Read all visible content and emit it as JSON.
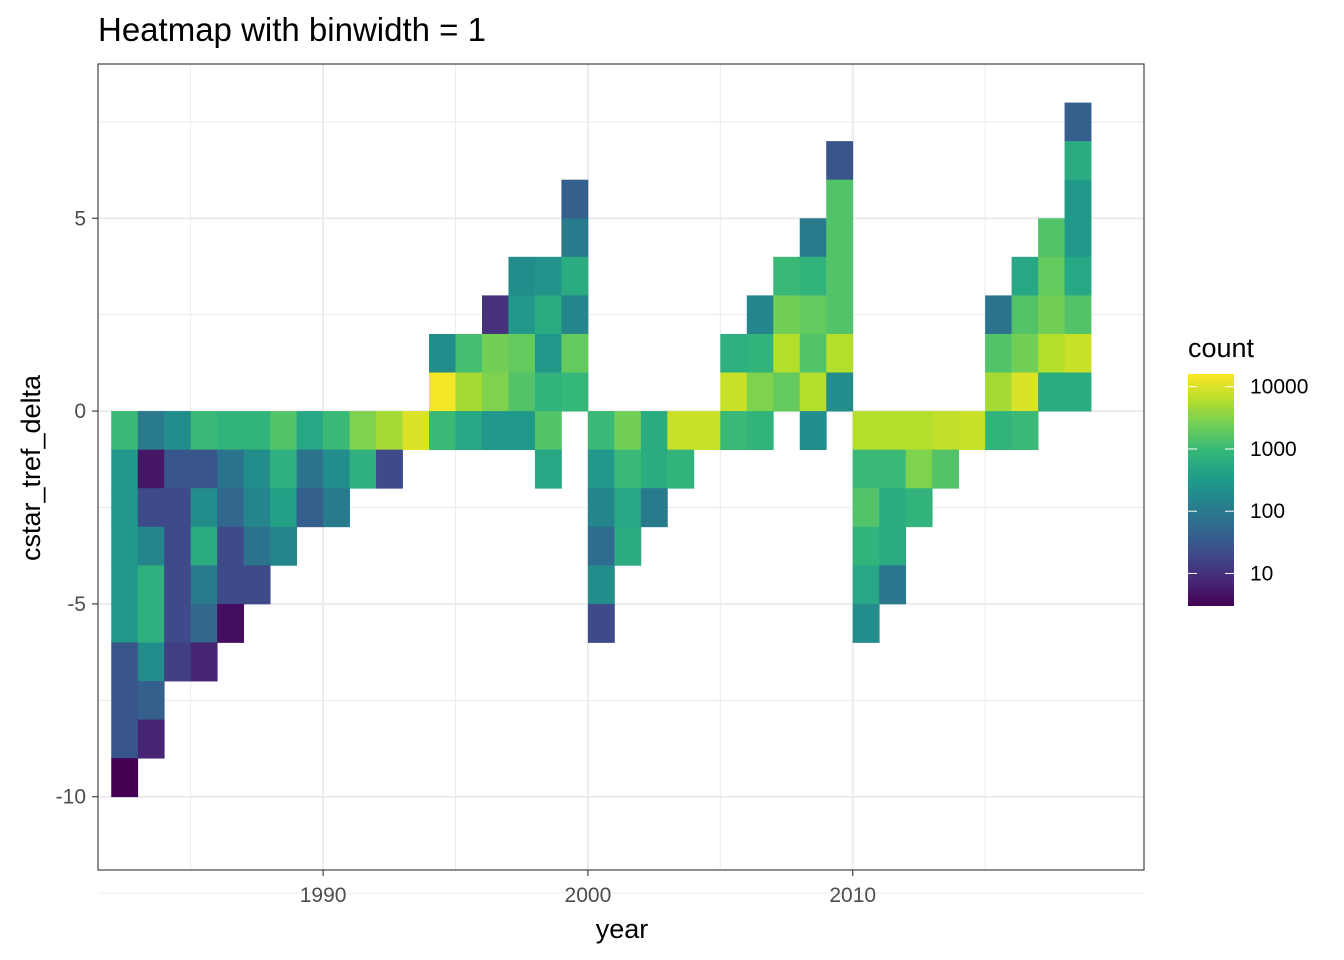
{
  "chart_data": {
    "type": "heatmap",
    "title": "Heatmap with binwidth = 1",
    "xlabel": "year",
    "ylabel": "cstar_tref_delta",
    "xlim": [
      1981.5,
      2021
    ],
    "ylim": [
      -11.9,
      9
    ],
    "x_ticks": [
      1990,
      2000,
      2010
    ],
    "y_ticks": [
      -10,
      -5,
      0,
      5
    ],
    "x_tick_labels": [
      "1990",
      "2000",
      "2010"
    ],
    "y_tick_labels": [
      "-10",
      "-5",
      "0",
      "5"
    ],
    "grid": true,
    "bin_width": 1,
    "legend": {
      "title": "count",
      "position": "right",
      "scale": "log10",
      "breaks": [
        10,
        100,
        1000,
        10000
      ],
      "labels": [
        "10",
        "100",
        "1000",
        "10000"
      ],
      "domain": [
        3,
        16000
      ],
      "colors": [
        "#440154",
        "#482878",
        "#3e4a89",
        "#31688e",
        "#26828e",
        "#1f9e89",
        "#35b779",
        "#6ece58",
        "#b5de2b",
        "#fde725"
      ]
    },
    "columns": [
      {
        "x": 1982.5,
        "y_top": 0,
        "counts": [
          1000,
          300,
          300,
          300,
          300,
          300,
          30,
          30,
          30,
          3
        ]
      },
      {
        "x": 1983.5,
        "y_top": 0,
        "counts": [
          100,
          5,
          20,
          150,
          700,
          700,
          200,
          40,
          7
        ]
      },
      {
        "x": 1984.5,
        "y_top": 0,
        "counts": [
          200,
          30,
          20,
          20,
          20,
          20,
          15
        ]
      },
      {
        "x": 1985.5,
        "y_top": 0,
        "counts": [
          1000,
          30,
          200,
          600,
          100,
          50,
          7
        ]
      },
      {
        "x": 1986.5,
        "y_top": 0,
        "counts": [
          800,
          80,
          50,
          20,
          20,
          4
        ]
      },
      {
        "x": 1987.5,
        "y_top": 0,
        "counts": [
          800,
          200,
          150,
          80,
          20
        ]
      },
      {
        "x": 1988.5,
        "y_top": 0,
        "counts": [
          1500,
          700,
          400,
          150
        ]
      },
      {
        "x": 1989.5,
        "y_top": 0,
        "counts": [
          500,
          80,
          40
        ]
      },
      {
        "x": 1990.5,
        "y_top": 0,
        "counts": [
          1000,
          200,
          100
        ]
      },
      {
        "x": 1991.5,
        "y_top": 0,
        "counts": [
          3000,
          700
        ]
      },
      {
        "x": 1992.5,
        "y_top": 0,
        "counts": [
          5000,
          20
        ]
      },
      {
        "x": 1993.5,
        "y_top": 0,
        "counts": [
          10000
        ]
      },
      {
        "x": 1994.5,
        "y_top": 2,
        "counts": [
          200,
          14000,
          1000
        ]
      },
      {
        "x": 1995.5,
        "y_top": 2,
        "counts": [
          1200,
          5000,
          500
        ]
      },
      {
        "x": 1996.5,
        "y_top": 3,
        "counts": [
          10,
          2500,
          3000,
          300
        ]
      },
      {
        "x": 1997.5,
        "y_top": 4,
        "counts": [
          200,
          300,
          2000,
          1500,
          300
        ]
      },
      {
        "x": 1998.5,
        "y_top": 4,
        "counts": [
          250,
          600,
          300,
          800,
          1500,
          500
        ]
      },
      {
        "x": 1999.5,
        "y_top": 6,
        "counts": [
          40,
          100,
          600,
          150,
          2000,
          900
        ]
      },
      {
        "x": 2000.5,
        "y_top": 0,
        "counts": [
          1000,
          300,
          150,
          60,
          200,
          20
        ]
      },
      {
        "x": 2001.5,
        "y_top": 0,
        "counts": [
          2500,
          1000,
          500,
          600
        ]
      },
      {
        "x": 2002.5,
        "y_top": 0,
        "counts": [
          600,
          600,
          100
        ]
      },
      {
        "x": 2003.5,
        "y_top": 0,
        "counts": [
          8000,
          800
        ]
      },
      {
        "x": 2004.5,
        "y_top": 0,
        "counts": [
          8000
        ]
      },
      {
        "x": 2005.5,
        "y_top": 2,
        "counts": [
          700,
          8000,
          1000
        ]
      },
      {
        "x": 2006.5,
        "y_top": 3,
        "counts": [
          150,
          800,
          3000,
          800
        ]
      },
      {
        "x": 2007.5,
        "y_top": 4,
        "counts": [
          1000,
          2500,
          6000,
          2000
        ]
      },
      {
        "x": 2008.5,
        "y_top": 5,
        "counts": [
          100,
          800,
          2000,
          1500,
          6000,
          200
        ]
      },
      {
        "x": 2009.5,
        "y_top": 7,
        "counts": [
          30,
          1500,
          1500,
          1500,
          1500,
          6000,
          200
        ]
      },
      {
        "x": 2010.5,
        "y_top": 0,
        "counts": [
          6000,
          1000,
          1500,
          800,
          500,
          200
        ]
      },
      {
        "x": 2011.5,
        "y_top": 0,
        "counts": [
          6000,
          1000,
          600,
          600,
          90
        ]
      },
      {
        "x": 2012.5,
        "y_top": 0,
        "counts": [
          6000,
          3000,
          800
        ]
      },
      {
        "x": 2013.5,
        "y_top": 0,
        "counts": [
          7000,
          1500
        ]
      },
      {
        "x": 2014.5,
        "y_top": 0,
        "counts": [
          8000
        ]
      },
      {
        "x": 2015.5,
        "y_top": 3,
        "counts": [
          80,
          1500,
          5000,
          800
        ]
      },
      {
        "x": 2016.5,
        "y_top": 4,
        "counts": [
          500,
          1500,
          2500,
          10000,
          1000
        ]
      },
      {
        "x": 2017.5,
        "y_top": 5,
        "counts": [
          1500,
          2000,
          2500,
          6000,
          600
        ]
      },
      {
        "x": 2018.5,
        "y_top": 8,
        "counts": [
          40,
          600,
          300,
          300,
          500,
          1500,
          8000,
          600
        ]
      }
    ]
  }
}
